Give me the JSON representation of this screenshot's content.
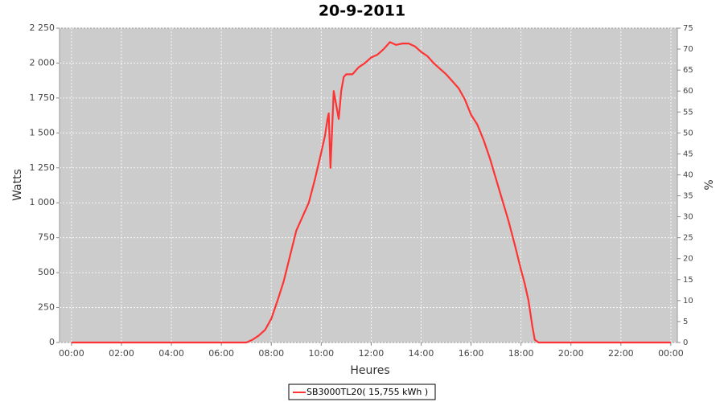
{
  "chart_data": {
    "type": "line",
    "title": "20-9-2011",
    "xlabel": "Heures",
    "ylabel": "Watts",
    "y2label": "%",
    "x": [
      0,
      7,
      7.25,
      7.5,
      7.75,
      8,
      8.25,
      8.5,
      8.75,
      9,
      9.25,
      9.5,
      9.75,
      10,
      10.15,
      10.25,
      10.3,
      10.37,
      10.5,
      10.6,
      10.7,
      10.8,
      10.9,
      11,
      11.25,
      11.5,
      11.75,
      12,
      12.25,
      12.5,
      12.75,
      13,
      13.25,
      13.5,
      13.75,
      14,
      14.25,
      14.5,
      14.75,
      15,
      15.25,
      15.5,
      15.75,
      16,
      16.25,
      16.5,
      16.75,
      17,
      17.25,
      17.5,
      17.75,
      18,
      18.15,
      18.3,
      18.45,
      18.55,
      18.7,
      24
    ],
    "series": [
      {
        "name": "SB3000TL20( 15,755 kWh )",
        "color": "#ff3333",
        "values": [
          0,
          0,
          20,
          50,
          90,
          170,
          300,
          440,
          620,
          800,
          900,
          1000,
          1170,
          1360,
          1480,
          1600,
          1640,
          1250,
          1800,
          1700,
          1600,
          1800,
          1900,
          1920,
          1920,
          1970,
          2000,
          2040,
          2060,
          2100,
          2150,
          2130,
          2140,
          2140,
          2120,
          2080,
          2050,
          2000,
          1960,
          1920,
          1870,
          1820,
          1740,
          1630,
          1560,
          1450,
          1320,
          1170,
          1020,
          870,
          700,
          520,
          420,
          300,
          120,
          20,
          0,
          0
        ]
      }
    ],
    "xlim": [
      -0.48,
      24.26
    ],
    "xticks": [
      {
        "value": 0,
        "label": "00:00"
      },
      {
        "value": 2,
        "label": "02:00"
      },
      {
        "value": 4,
        "label": "04:00"
      },
      {
        "value": 6,
        "label": "06:00"
      },
      {
        "value": 8,
        "label": "08:00"
      },
      {
        "value": 10,
        "label": "10:00"
      },
      {
        "value": 12,
        "label": "12:00"
      },
      {
        "value": 14,
        "label": "14:00"
      },
      {
        "value": 16,
        "label": "16:00"
      },
      {
        "value": 18,
        "label": "18:00"
      },
      {
        "value": 20,
        "label": "20:00"
      },
      {
        "value": 22,
        "label": "22:00"
      },
      {
        "value": 24,
        "label": "00:00"
      }
    ],
    "ylim": [
      0,
      2250
    ],
    "yticks": [
      0,
      250,
      500,
      750,
      {
        "value": 1000,
        "label": "1 000"
      },
      {
        "value": 1250,
        "label": "1 250"
      },
      {
        "value": 1500,
        "label": "1 500"
      },
      {
        "value": 1750,
        "label": "1 750"
      },
      {
        "value": 2000,
        "label": "2 000"
      },
      {
        "value": 2250,
        "label": "2 250"
      }
    ],
    "y2lim": [
      0,
      75
    ],
    "y2ticks": [
      0,
      5,
      10,
      15,
      20,
      25,
      30,
      35,
      40,
      45,
      50,
      55,
      60,
      65,
      70,
      75
    ],
    "grid": true,
    "legend": "bottom"
  }
}
